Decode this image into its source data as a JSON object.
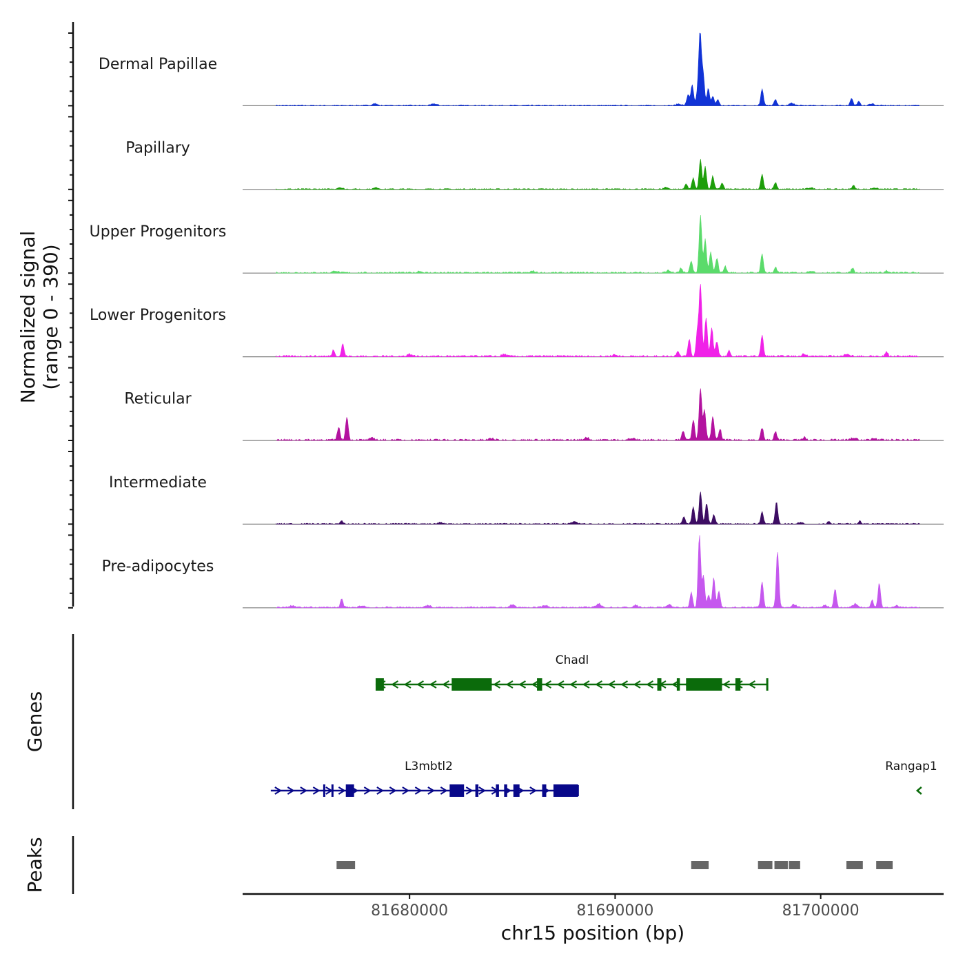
{
  "chart_data": {
    "type": "area",
    "chromosome": "chr15",
    "xlabel": "chr15 position (bp)",
    "ylabel_line1": "Normalized signal",
    "ylabel_line2": "(range 0 - 390)",
    "y_range": [
      0,
      390
    ],
    "x_range": [
      81671880,
      81705980
    ],
    "x_ticks": [
      {
        "value": 81680000,
        "label": "81680000"
      },
      {
        "value": 81690000,
        "label": "81690000"
      },
      {
        "value": 81700000,
        "label": "81700000"
      }
    ],
    "signal_start": 81673500,
    "signal_end": 81704800,
    "series": [
      {
        "name": "Dermal Papillae",
        "color": "#1133d6",
        "baseline": 3,
        "peaks": [
          [
            81693550,
            60
          ],
          [
            81693750,
            110
          ],
          [
            81694000,
            55
          ],
          [
            81694130,
            390
          ],
          [
            81694280,
            170
          ],
          [
            81694530,
            90
          ],
          [
            81694750,
            50
          ],
          [
            81695000,
            30
          ],
          [
            81697150,
            90
          ],
          [
            81697800,
            30
          ],
          [
            81701500,
            40
          ],
          [
            81701850,
            20
          ]
        ],
        "bumps": [
          [
            81678300,
            10
          ],
          [
            81681200,
            9
          ],
          [
            81693100,
            8
          ],
          [
            81698600,
            12
          ],
          [
            81702500,
            9
          ]
        ]
      },
      {
        "name": "Papillary",
        "color": "#1d9e0a",
        "baseline": 3,
        "peaks": [
          [
            81693450,
            30
          ],
          [
            81693800,
            60
          ],
          [
            81694150,
            160
          ],
          [
            81694380,
            120
          ],
          [
            81694750,
            70
          ],
          [
            81695200,
            35
          ],
          [
            81697150,
            80
          ],
          [
            81697800,
            35
          ],
          [
            81701600,
            20
          ]
        ],
        "bumps": [
          [
            81676600,
            10
          ],
          [
            81678400,
            8
          ],
          [
            81692500,
            10
          ],
          [
            81699500,
            8
          ],
          [
            81702600,
            8
          ]
        ]
      },
      {
        "name": "Upper Progenitors",
        "color": "#5bdb6b",
        "baseline": 4,
        "peaks": [
          [
            81693200,
            25
          ],
          [
            81693700,
            60
          ],
          [
            81694150,
            310
          ],
          [
            81694380,
            180
          ],
          [
            81694650,
            110
          ],
          [
            81694950,
            80
          ],
          [
            81695350,
            35
          ],
          [
            81697150,
            100
          ],
          [
            81697800,
            30
          ],
          [
            81701550,
            25
          ],
          [
            81703200,
            12
          ]
        ],
        "bumps": [
          [
            81676400,
            10
          ],
          [
            81680500,
            9
          ],
          [
            81686000,
            9
          ],
          [
            81692600,
            12
          ],
          [
            81699500,
            10
          ]
        ]
      },
      {
        "name": "Lower Progenitors",
        "color": "#f022e8",
        "baseline": 5,
        "peaks": [
          [
            81676300,
            35
          ],
          [
            81676750,
            65
          ],
          [
            81693050,
            30
          ],
          [
            81693600,
            90
          ],
          [
            81694000,
            130
          ],
          [
            81694150,
            390
          ],
          [
            81694420,
            210
          ],
          [
            81694700,
            150
          ],
          [
            81694950,
            80
          ],
          [
            81695550,
            30
          ],
          [
            81697150,
            110
          ],
          [
            81703200,
            25
          ]
        ],
        "bumps": [
          [
            81680000,
            12
          ],
          [
            81684600,
            10
          ],
          [
            81690000,
            10
          ],
          [
            81699200,
            12
          ],
          [
            81701300,
            14
          ]
        ]
      },
      {
        "name": "Reticular",
        "color": "#b3129f",
        "baseline": 5,
        "peaks": [
          [
            81676550,
            70
          ],
          [
            81676950,
            125
          ],
          [
            81693300,
            50
          ],
          [
            81693800,
            110
          ],
          [
            81694150,
            280
          ],
          [
            81694350,
            160
          ],
          [
            81694750,
            130
          ],
          [
            81695100,
            60
          ],
          [
            81697150,
            65
          ],
          [
            81697800,
            45
          ],
          [
            81699200,
            15
          ]
        ],
        "bumps": [
          [
            81678200,
            10
          ],
          [
            81684000,
            9
          ],
          [
            81688600,
            14
          ],
          [
            81690800,
            10
          ],
          [
            81701600,
            12
          ],
          [
            81702600,
            10
          ]
        ]
      },
      {
        "name": "Intermediate",
        "color": "#3d0d63",
        "baseline": 3,
        "peaks": [
          [
            81676700,
            15
          ],
          [
            81693350,
            40
          ],
          [
            81693800,
            90
          ],
          [
            81694150,
            175
          ],
          [
            81694450,
            110
          ],
          [
            81694800,
            50
          ],
          [
            81697150,
            65
          ],
          [
            81697850,
            120
          ],
          [
            81700400,
            15
          ],
          [
            81701900,
            15
          ]
        ],
        "bumps": [
          [
            81681500,
            8
          ],
          [
            81688000,
            12
          ],
          [
            81699000,
            8
          ]
        ]
      },
      {
        "name": "Pre-adipocytes",
        "color": "#c558ee",
        "baseline": 4,
        "peaks": [
          [
            81676700,
            45
          ],
          [
            81693700,
            80
          ],
          [
            81694100,
            390
          ],
          [
            81694300,
            170
          ],
          [
            81694550,
            70
          ],
          [
            81694800,
            160
          ],
          [
            81695050,
            90
          ],
          [
            81697150,
            140
          ],
          [
            81697900,
            300
          ],
          [
            81700700,
            100
          ],
          [
            81702500,
            40
          ],
          [
            81702850,
            130
          ],
          [
            81703700,
            15
          ]
        ],
        "bumps": [
          [
            81674300,
            10
          ],
          [
            81677700,
            10
          ],
          [
            81680900,
            12
          ],
          [
            81685000,
            14
          ],
          [
            81686600,
            12
          ],
          [
            81689200,
            20
          ],
          [
            81691000,
            12
          ],
          [
            81692600,
            15
          ],
          [
            81698700,
            15
          ],
          [
            81700200,
            12
          ],
          [
            81701700,
            20
          ]
        ]
      }
    ],
    "genes": [
      {
        "name": "Chadl",
        "strand": "-",
        "color": "#0b6b0b",
        "start": 81678350,
        "end": 81697400,
        "exons": [
          [
            81678350,
            81678750
          ],
          [
            81682050,
            81684000
          ],
          [
            81686200,
            81686450
          ],
          [
            81692050,
            81692250
          ],
          [
            81693000,
            81693150
          ],
          [
            81693450,
            81695200
          ],
          [
            81695850,
            81696100
          ],
          [
            81697350,
            81697400
          ]
        ]
      },
      {
        "name": "L3mbtl2",
        "strand": "+",
        "color": "#08088a",
        "start": 81673250,
        "end": 81688200,
        "exons": [
          [
            81675800,
            81675900
          ],
          [
            81676200,
            81676300
          ],
          [
            81676900,
            81677300
          ],
          [
            81681950,
            81682650
          ],
          [
            81683200,
            81683350
          ],
          [
            81684200,
            81684350
          ],
          [
            81684600,
            81684750
          ],
          [
            81685050,
            81685350
          ],
          [
            81686450,
            81686650
          ],
          [
            81687000,
            81688200
          ]
        ]
      },
      {
        "name": "Rangap1",
        "strand": "-",
        "color": "#0b6b0b",
        "start": 81704700,
        "end": 81704900,
        "exons": []
      }
    ],
    "peaks_track": [
      [
        81676450,
        81677350
      ],
      [
        81693700,
        81694550
      ],
      [
        81696950,
        81697650
      ],
      [
        81697750,
        81698400
      ],
      [
        81698450,
        81699000
      ],
      [
        81701250,
        81702050
      ],
      [
        81702700,
        81703500
      ]
    ],
    "track_titles": {
      "genes": "Genes",
      "peaks": "Peaks"
    }
  }
}
